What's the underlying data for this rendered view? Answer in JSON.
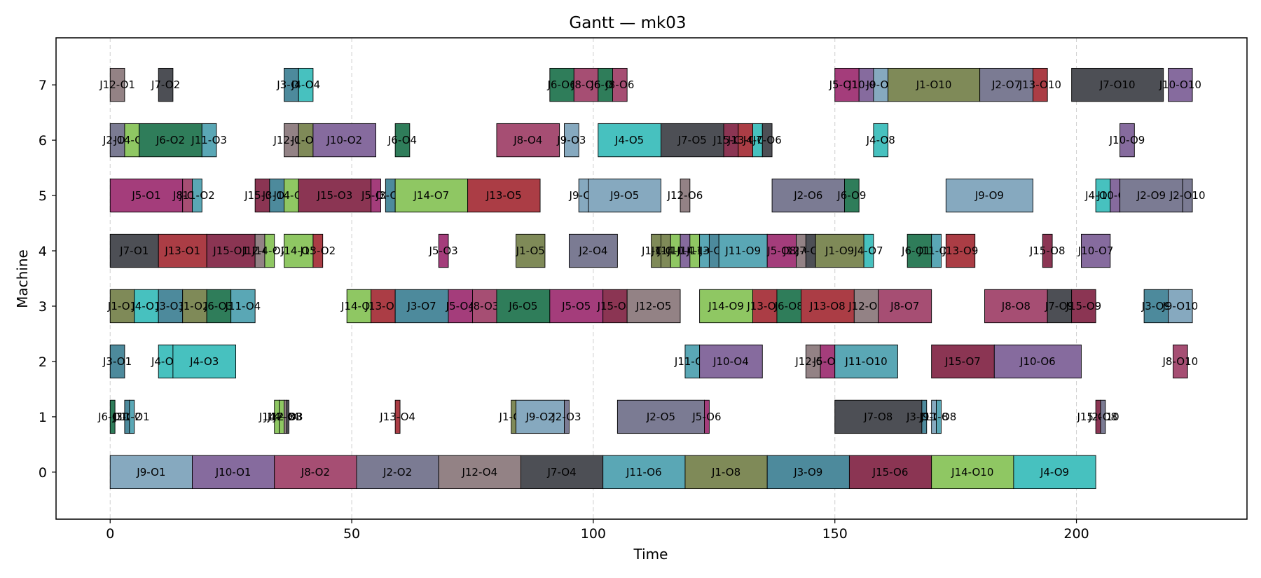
{
  "chart_data": {
    "type": "gantt",
    "title": "Gantt — mk03",
    "xlabel": "Time",
    "ylabel": "Machine",
    "xlim": [
      -11.2,
      235.3
    ],
    "ylim": [
      -0.85,
      7.85
    ],
    "xticks": [
      0,
      50,
      100,
      150,
      200
    ],
    "yticks": [
      0,
      1,
      2,
      3,
      4,
      5,
      6,
      7
    ],
    "grid": "x-dashed",
    "job_colors": {
      "J1": "#7f8a58",
      "J2": "#7b7b93",
      "J3": "#4d8a9c",
      "J4": "#47c1bf",
      "J5": "#a43d7b",
      "J6": "#2f7d5a",
      "J7": "#4d4f55",
      "J8": "#a64e73",
      "J9": "#86a9bf",
      "J10": "#866b9e",
      "J11": "#5aa7b5",
      "J12": "#938285",
      "J13": "#ab3d45",
      "J14": "#8fc763",
      "J15": "#8b3553"
    },
    "tasks": [
      {
        "machine": 0,
        "label": "J9-O1",
        "start": 0,
        "end": 17
      },
      {
        "machine": 0,
        "label": "J10-O1",
        "start": 17,
        "end": 34
      },
      {
        "machine": 0,
        "label": "J8-O2",
        "start": 34,
        "end": 51
      },
      {
        "machine": 0,
        "label": "J2-O2",
        "start": 51,
        "end": 68
      },
      {
        "machine": 0,
        "label": "J12-O4",
        "start": 68,
        "end": 85
      },
      {
        "machine": 0,
        "label": "J7-O4",
        "start": 85,
        "end": 102
      },
      {
        "machine": 0,
        "label": "J11-O6",
        "start": 102,
        "end": 119
      },
      {
        "machine": 0,
        "label": "J1-O8",
        "start": 119,
        "end": 136
      },
      {
        "machine": 0,
        "label": "J3-O9",
        "start": 136,
        "end": 153
      },
      {
        "machine": 0,
        "label": "J15-O6",
        "start": 153,
        "end": 170
      },
      {
        "machine": 0,
        "label": "J14-O10",
        "start": 170,
        "end": 187
      },
      {
        "machine": 0,
        "label": "J4-O9",
        "start": 187,
        "end": 204
      },
      {
        "machine": 1,
        "label": "J6-O1",
        "start": 0,
        "end": 1
      },
      {
        "machine": 1,
        "label": "J3-O2",
        "start": 3,
        "end": 4
      },
      {
        "machine": 1,
        "label": "J11-O1",
        "start": 4,
        "end": 5
      },
      {
        "machine": 1,
        "label": "J14-O3",
        "start": 34,
        "end": 35
      },
      {
        "machine": 1,
        "label": "J14-O4",
        "start": 35,
        "end": 36
      },
      {
        "machine": 1,
        "label": "J12-O3",
        "start": 36,
        "end": 36.5
      },
      {
        "machine": 1,
        "label": "J7-O3",
        "start": 36.5,
        "end": 37
      },
      {
        "machine": 1,
        "label": "J13-O4",
        "start": 59,
        "end": 60
      },
      {
        "machine": 1,
        "label": "J1-O4",
        "start": 83,
        "end": 84
      },
      {
        "machine": 1,
        "label": "J9-O2",
        "start": 84,
        "end": 94
      },
      {
        "machine": 1,
        "label": "J2-O3",
        "start": 94,
        "end": 95
      },
      {
        "machine": 1,
        "label": "J2-O5",
        "start": 105,
        "end": 123
      },
      {
        "machine": 1,
        "label": "J5-O6",
        "start": 123,
        "end": 124
      },
      {
        "machine": 1,
        "label": "J7-O8",
        "start": 150,
        "end": 168
      },
      {
        "machine": 1,
        "label": "J3-O10",
        "start": 168,
        "end": 169
      },
      {
        "machine": 1,
        "label": "J9-O8",
        "start": 170,
        "end": 171
      },
      {
        "machine": 1,
        "label": "J11-O8",
        "start": 171,
        "end": 172
      },
      {
        "machine": 1,
        "label": "J15-O10",
        "start": 204,
        "end": 205
      },
      {
        "machine": 1,
        "label": "J2-O8",
        "start": 205,
        "end": 206
      },
      {
        "machine": 2,
        "label": "J3-O1",
        "start": 0,
        "end": 3
      },
      {
        "machine": 2,
        "label": "J4-O2",
        "start": 10,
        "end": 13
      },
      {
        "machine": 2,
        "label": "J4-O3",
        "start": 13,
        "end": 26
      },
      {
        "machine": 2,
        "label": "J11-O7",
        "start": 119,
        "end": 122
      },
      {
        "machine": 2,
        "label": "J10-O4",
        "start": 122,
        "end": 135
      },
      {
        "machine": 2,
        "label": "J12-O8",
        "start": 144,
        "end": 147
      },
      {
        "machine": 2,
        "label": "J5-O9",
        "start": 147,
        "end": 150
      },
      {
        "machine": 2,
        "label": "J11-O10",
        "start": 150,
        "end": 163
      },
      {
        "machine": 2,
        "label": "J15-O7",
        "start": 170,
        "end": 183
      },
      {
        "machine": 2,
        "label": "J10-O6",
        "start": 183,
        "end": 201
      },
      {
        "machine": 2,
        "label": "J8-O10",
        "start": 220,
        "end": 223
      },
      {
        "machine": 3,
        "label": "J1-O1",
        "start": 0,
        "end": 5
      },
      {
        "machine": 3,
        "label": "J4-O1",
        "start": 5,
        "end": 10
      },
      {
        "machine": 3,
        "label": "J3-O3",
        "start": 10,
        "end": 15
      },
      {
        "machine": 3,
        "label": "J1-O2",
        "start": 15,
        "end": 20
      },
      {
        "machine": 3,
        "label": "J6-O3",
        "start": 20,
        "end": 25
      },
      {
        "machine": 3,
        "label": "J11-O4",
        "start": 25,
        "end": 30
      },
      {
        "machine": 3,
        "label": "J14-O6",
        "start": 49,
        "end": 54
      },
      {
        "machine": 3,
        "label": "J13-O3",
        "start": 54,
        "end": 59
      },
      {
        "machine": 3,
        "label": "J3-O7",
        "start": 59,
        "end": 70
      },
      {
        "machine": 3,
        "label": "J5-O4",
        "start": 70,
        "end": 75
      },
      {
        "machine": 3,
        "label": "J8-O3",
        "start": 75,
        "end": 80
      },
      {
        "machine": 3,
        "label": "J6-O5",
        "start": 80,
        "end": 91
      },
      {
        "machine": 3,
        "label": "J5-O5",
        "start": 91,
        "end": 102
      },
      {
        "machine": 3,
        "label": "J15-O4",
        "start": 102,
        "end": 107
      },
      {
        "machine": 3,
        "label": "J12-O5",
        "start": 107,
        "end": 118
      },
      {
        "machine": 3,
        "label": "J14-O9",
        "start": 122,
        "end": 133
      },
      {
        "machine": 3,
        "label": "J13-O7",
        "start": 133,
        "end": 138
      },
      {
        "machine": 3,
        "label": "J6-O8",
        "start": 138,
        "end": 143
      },
      {
        "machine": 3,
        "label": "J13-O8",
        "start": 143,
        "end": 154
      },
      {
        "machine": 3,
        "label": "J12-O9",
        "start": 154,
        "end": 159
      },
      {
        "machine": 3,
        "label": "J8-O7",
        "start": 159,
        "end": 170
      },
      {
        "machine": 3,
        "label": "J8-O8",
        "start": 181,
        "end": 194
      },
      {
        "machine": 3,
        "label": "J7-O9",
        "start": 194,
        "end": 199
      },
      {
        "machine": 3,
        "label": "J15-O9",
        "start": 199,
        "end": 204
      },
      {
        "machine": 3,
        "label": "J3-O9",
        "start": 214,
        "end": 219
      },
      {
        "machine": 3,
        "label": "J9-O10",
        "start": 219,
        "end": 224
      },
      {
        "machine": 4,
        "label": "J7-O1",
        "start": 0,
        "end": 10
      },
      {
        "machine": 4,
        "label": "J13-O1",
        "start": 10,
        "end": 20
      },
      {
        "machine": 4,
        "label": "J15-O1",
        "start": 20,
        "end": 30
      },
      {
        "machine": 4,
        "label": "J12-O2",
        "start": 30,
        "end": 32
      },
      {
        "machine": 4,
        "label": "J14-O2",
        "start": 32,
        "end": 34
      },
      {
        "machine": 4,
        "label": "J14-O5",
        "start": 36,
        "end": 42
      },
      {
        "machine": 4,
        "label": "J13-O2",
        "start": 42,
        "end": 44
      },
      {
        "machine": 4,
        "label": "J5-O3",
        "start": 68,
        "end": 70
      },
      {
        "machine": 4,
        "label": "J1-O5",
        "start": 84,
        "end": 90
      },
      {
        "machine": 4,
        "label": "J2-O4",
        "start": 95,
        "end": 105
      },
      {
        "machine": 4,
        "label": "J1-O6",
        "start": 112,
        "end": 114
      },
      {
        "machine": 4,
        "label": "J1-O7",
        "start": 114,
        "end": 116
      },
      {
        "machine": 4,
        "label": "J14-O8",
        "start": 116,
        "end": 118
      },
      {
        "machine": 4,
        "label": "J10-O3",
        "start": 118,
        "end": 120
      },
      {
        "machine": 4,
        "label": "J14-O3",
        "start": 120,
        "end": 122
      },
      {
        "machine": 4,
        "label": "J11-O5",
        "start": 122,
        "end": 124
      },
      {
        "machine": 4,
        "label": "J3-O8",
        "start": 124,
        "end": 126
      },
      {
        "machine": 4,
        "label": "J11-O9",
        "start": 126,
        "end": 136
      },
      {
        "machine": 4,
        "label": "J5-O8",
        "start": 136,
        "end": 142
      },
      {
        "machine": 4,
        "label": "J12-O7",
        "start": 142,
        "end": 144
      },
      {
        "machine": 4,
        "label": "J7-O7",
        "start": 144,
        "end": 146
      },
      {
        "machine": 4,
        "label": "J1-O9",
        "start": 146,
        "end": 156
      },
      {
        "machine": 4,
        "label": "J4-O7",
        "start": 156,
        "end": 158
      },
      {
        "machine": 4,
        "label": "J6-O10",
        "start": 165,
        "end": 170
      },
      {
        "machine": 4,
        "label": "J11-O7",
        "start": 170,
        "end": 172
      },
      {
        "machine": 4,
        "label": "J13-O9",
        "start": 173,
        "end": 179
      },
      {
        "machine": 4,
        "label": "J15-O8",
        "start": 193,
        "end": 195
      },
      {
        "machine": 4,
        "label": "J10-O7",
        "start": 201,
        "end": 207
      },
      {
        "machine": 5,
        "label": "J5-O1",
        "start": 0,
        "end": 15
      },
      {
        "machine": 5,
        "label": "J8-O1",
        "start": 15,
        "end": 17
      },
      {
        "machine": 5,
        "label": "J11-O2",
        "start": 17,
        "end": 19
      },
      {
        "machine": 5,
        "label": "J15-O2",
        "start": 30,
        "end": 33
      },
      {
        "machine": 5,
        "label": "J3-O4",
        "start": 33,
        "end": 36
      },
      {
        "machine": 5,
        "label": "J14-O5",
        "start": 36,
        "end": 39
      },
      {
        "machine": 5,
        "label": "J15-O3",
        "start": 39,
        "end": 54
      },
      {
        "machine": 5,
        "label": "J5-O2",
        "start": 54,
        "end": 56
      },
      {
        "machine": 5,
        "label": "J3-O6",
        "start": 57,
        "end": 59
      },
      {
        "machine": 5,
        "label": "J14-O7",
        "start": 59,
        "end": 74
      },
      {
        "machine": 5,
        "label": "J13-O5",
        "start": 74,
        "end": 89
      },
      {
        "machine": 5,
        "label": "J9-O4",
        "start": 97,
        "end": 99
      },
      {
        "machine": 5,
        "label": "J9-O5",
        "start": 99,
        "end": 114
      },
      {
        "machine": 5,
        "label": "J12-O6",
        "start": 118,
        "end": 120
      },
      {
        "machine": 5,
        "label": "J2-O6",
        "start": 137,
        "end": 152
      },
      {
        "machine": 5,
        "label": "J6-O9",
        "start": 152,
        "end": 155
      },
      {
        "machine": 5,
        "label": "J9-O9",
        "start": 173,
        "end": 191
      },
      {
        "machine": 5,
        "label": "J4-O10",
        "start": 204,
        "end": 207
      },
      {
        "machine": 5,
        "label": "J10-O8",
        "start": 207,
        "end": 209
      },
      {
        "machine": 5,
        "label": "J2-O9",
        "start": 209,
        "end": 222
      },
      {
        "machine": 5,
        "label": "J2-O10",
        "start": 222,
        "end": 224
      },
      {
        "machine": 6,
        "label": "J2-O1",
        "start": 0,
        "end": 3
      },
      {
        "machine": 6,
        "label": "J14-O1",
        "start": 3,
        "end": 6
      },
      {
        "machine": 6,
        "label": "J6-O2",
        "start": 6,
        "end": 19
      },
      {
        "machine": 6,
        "label": "J11-O3",
        "start": 19,
        "end": 22
      },
      {
        "machine": 6,
        "label": "J12-O1",
        "start": 36,
        "end": 39
      },
      {
        "machine": 6,
        "label": "J1-O3",
        "start": 39,
        "end": 42
      },
      {
        "machine": 6,
        "label": "J10-O2",
        "start": 42,
        "end": 55
      },
      {
        "machine": 6,
        "label": "J6-O4",
        "start": 59,
        "end": 62
      },
      {
        "machine": 6,
        "label": "J8-O4",
        "start": 80,
        "end": 93
      },
      {
        "machine": 6,
        "label": "J9-O3",
        "start": 94,
        "end": 97
      },
      {
        "machine": 6,
        "label": "J4-O5",
        "start": 101,
        "end": 114
      },
      {
        "machine": 6,
        "label": "J7-O5",
        "start": 114,
        "end": 127
      },
      {
        "machine": 6,
        "label": "J15-O5",
        "start": 127,
        "end": 130
      },
      {
        "machine": 6,
        "label": "J13-O6",
        "start": 130,
        "end": 133
      },
      {
        "machine": 6,
        "label": "J4-O6",
        "start": 133,
        "end": 135
      },
      {
        "machine": 6,
        "label": "J7-O6",
        "start": 135,
        "end": 137
      },
      {
        "machine": 6,
        "label": "J4-O8",
        "start": 158,
        "end": 161
      },
      {
        "machine": 6,
        "label": "J10-O9",
        "start": 209,
        "end": 212
      },
      {
        "machine": 7,
        "label": "J12-O1",
        "start": 0,
        "end": 3
      },
      {
        "machine": 7,
        "label": "J7-O2",
        "start": 10,
        "end": 13
      },
      {
        "machine": 7,
        "label": "J3-O5",
        "start": 36,
        "end": 39
      },
      {
        "machine": 7,
        "label": "J4-O4",
        "start": 39,
        "end": 42
      },
      {
        "machine": 7,
        "label": "J6-O6",
        "start": 91,
        "end": 96
      },
      {
        "machine": 7,
        "label": "J8-O6",
        "start": 96,
        "end": 101
      },
      {
        "machine": 7,
        "label": "J6-O7",
        "start": 101,
        "end": 104
      },
      {
        "machine": 7,
        "label": "J8-O6",
        "start": 104,
        "end": 107
      },
      {
        "machine": 7,
        "label": "J5-O10",
        "start": 150,
        "end": 155
      },
      {
        "machine": 7,
        "label": "J10-O5",
        "start": 155,
        "end": 158
      },
      {
        "machine": 7,
        "label": "J9-O6",
        "start": 158,
        "end": 161
      },
      {
        "machine": 7,
        "label": "J1-O10",
        "start": 161,
        "end": 180
      },
      {
        "machine": 7,
        "label": "J2-O7",
        "start": 180,
        "end": 191
      },
      {
        "machine": 7,
        "label": "J13-O10",
        "start": 191,
        "end": 194
      },
      {
        "machine": 7,
        "label": "J7-O10",
        "start": 199,
        "end": 218
      },
      {
        "machine": 7,
        "label": "J10-O10",
        "start": 219,
        "end": 224
      }
    ]
  }
}
